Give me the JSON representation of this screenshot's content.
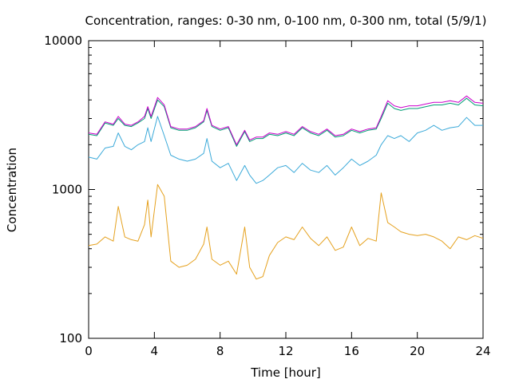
{
  "chart_data": {
    "type": "line",
    "title": "Concentration, ranges: 0-30 nm, 0-100 nm, 0-300 nm, total (5/9/1)",
    "xlabel": "Time [hour]",
    "ylabel": "Concentration",
    "xlim": [
      0,
      24
    ],
    "ylim": [
      100,
      10000
    ],
    "yscale": "log",
    "x_ticks": [
      0,
      4,
      8,
      12,
      16,
      20,
      24
    ],
    "x_tick_labels": [
      "0",
      "4",
      "8",
      "12",
      "16",
      "20",
      "24"
    ],
    "y_ticks": [
      100,
      1000,
      10000
    ],
    "y_tick_labels": [
      "100",
      "1000",
      "10000"
    ],
    "grid": false,
    "legend": "none",
    "colors": [
      "#e5a11e",
      "#3aa9d9",
      "#009e73",
      "#cc00cc"
    ],
    "x": [
      0,
      0.5,
      1,
      1.5,
      1.8,
      2.2,
      2.6,
      3,
      3.4,
      3.6,
      3.8,
      4.2,
      4.6,
      5,
      5.5,
      6,
      6.5,
      7,
      7.2,
      7.5,
      8,
      8.5,
      9,
      9.5,
      9.8,
      10.2,
      10.6,
      11,
      11.5,
      12,
      12.5,
      13,
      13.5,
      14,
      14.5,
      15,
      15.5,
      16,
      16.5,
      17,
      17.5,
      17.8,
      18.2,
      18.6,
      19,
      19.5,
      20,
      20.5,
      21,
      21.5,
      22,
      22.5,
      23,
      23.5,
      24
    ],
    "series": [
      {
        "values": [
          420,
          430,
          480,
          450,
          770,
          480,
          460,
          450,
          580,
          850,
          480,
          1080,
          900,
          330,
          300,
          310,
          340,
          430,
          560,
          340,
          310,
          330,
          270,
          560,
          300,
          250,
          260,
          360,
          440,
          480,
          460,
          560,
          470,
          420,
          480,
          390,
          410,
          560,
          420,
          470,
          450,
          950,
          600,
          560,
          520,
          500,
          490,
          500,
          480,
          450,
          400,
          480,
          460,
          490,
          470
        ]
      },
      {
        "values": [
          1650,
          1600,
          1900,
          1950,
          2400,
          1950,
          1850,
          2000,
          2100,
          2600,
          2100,
          3100,
          2300,
          1700,
          1600,
          1550,
          1600,
          1750,
          2200,
          1550,
          1400,
          1500,
          1150,
          1450,
          1250,
          1100,
          1150,
          1250,
          1400,
          1450,
          1300,
          1500,
          1350,
          1300,
          1450,
          1250,
          1400,
          1600,
          1450,
          1550,
          1700,
          2000,
          2300,
          2200,
          2300,
          2100,
          2400,
          2500,
          2700,
          2500,
          2600,
          2650,
          3050,
          2700,
          2700
        ]
      },
      {
        "values": [
          2350,
          2300,
          2800,
          2700,
          3000,
          2700,
          2650,
          2800,
          3000,
          3500,
          3000,
          4000,
          3600,
          2600,
          2500,
          2500,
          2600,
          2850,
          3400,
          2650,
          2500,
          2600,
          1950,
          2450,
          2100,
          2200,
          2200,
          2350,
          2300,
          2400,
          2300,
          2600,
          2400,
          2300,
          2500,
          2250,
          2300,
          2500,
          2400,
          2500,
          2550,
          3000,
          3800,
          3500,
          3400,
          3500,
          3500,
          3600,
          3700,
          3700,
          3800,
          3700,
          4100,
          3700,
          3650
        ]
      },
      {
        "values": [
          2400,
          2350,
          2850,
          2750,
          3100,
          2750,
          2700,
          2850,
          3100,
          3600,
          3100,
          4150,
          3700,
          2650,
          2550,
          2550,
          2650,
          2900,
          3500,
          2700,
          2550,
          2650,
          2000,
          2500,
          2150,
          2250,
          2250,
          2400,
          2350,
          2450,
          2350,
          2650,
          2450,
          2350,
          2550,
          2300,
          2350,
          2550,
          2450,
          2550,
          2600,
          3100,
          3950,
          3650,
          3550,
          3650,
          3650,
          3750,
          3850,
          3850,
          3950,
          3850,
          4250,
          3850,
          3800
        ]
      }
    ]
  }
}
